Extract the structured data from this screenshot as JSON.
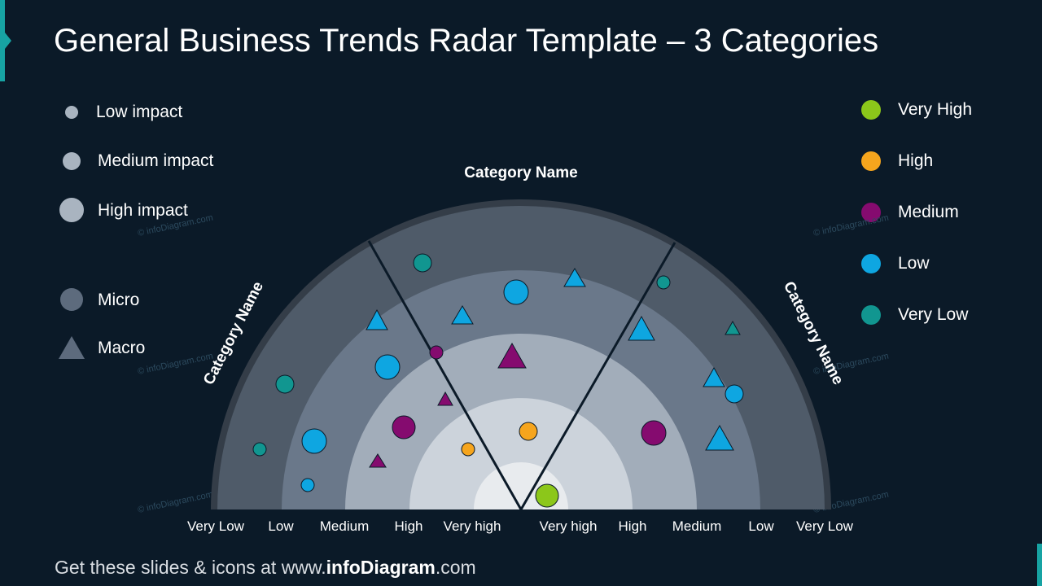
{
  "title": "General Business Trends Radar Template – 3 Categories",
  "impact_legend": [
    {
      "label": "Low impact",
      "size": "low"
    },
    {
      "label": "Medium impact",
      "size": "medium"
    },
    {
      "label": "High impact",
      "size": "high"
    }
  ],
  "type_legend": [
    {
      "label": "Micro",
      "shape": "circle"
    },
    {
      "label": "Macro",
      "shape": "triangle"
    }
  ],
  "level_legend": [
    {
      "label": "Very High",
      "color": "#8cc71a"
    },
    {
      "label": "High",
      "color": "#f6a51d"
    },
    {
      "label": "Medium",
      "color": "#850b6f"
    },
    {
      "label": "Low",
      "color": "#0ea6e1"
    },
    {
      "label": "Very Low",
      "color": "#119690"
    }
  ],
  "categories": {
    "left": "Category Name",
    "top": "Category Name",
    "right": "Category Name"
  },
  "ring_labels": {
    "left": [
      "Very Low",
      "Low",
      "Medium",
      "High",
      "Very high"
    ],
    "right": [
      "Very high",
      "High",
      "Medium",
      "Low",
      "Very Low"
    ]
  },
  "watermark": "© infoDiagram.com",
  "footer": {
    "prefix": "Get these slides & icons at www.",
    "brand": "infoDiagram",
    "suffix": ".com"
  }
}
